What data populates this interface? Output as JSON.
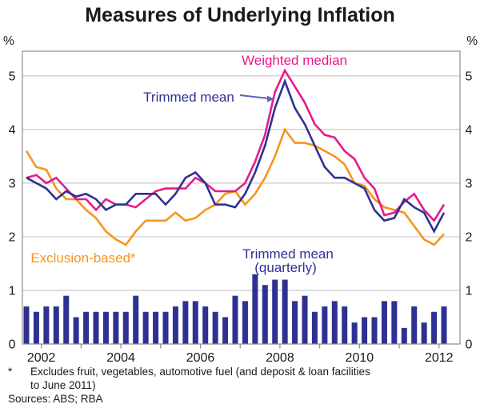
{
  "title": "Measures of Underlying Inflation",
  "footnote": {
    "marker": "*",
    "line1": "Excludes fruit, vegetables, automotive fuel (and deposit & loan facilities",
    "line2": "to June 2011)"
  },
  "sources": "Sources: ABS; RBA",
  "chart_data": {
    "type": "line+bar",
    "title": "Measures of Underlying Inflation",
    "unit_label": "%",
    "frequency": "quarterly",
    "x_start": "2002 Q1",
    "x_end": "2012 Q3",
    "x_tick_labels": [
      "2002",
      "2004",
      "2006",
      "2008",
      "2010",
      "2012"
    ],
    "yticks": [
      0,
      1,
      2,
      3,
      4,
      5
    ],
    "ylim": [
      0,
      5.46
    ],
    "grid": true,
    "series": [
      {
        "name": "Weighted median",
        "type": "line",
        "z": 2,
        "color": "#E61A8C",
        "values": [
          3.1,
          3.15,
          3.0,
          3.1,
          2.9,
          2.7,
          2.7,
          2.5,
          2.7,
          2.6,
          2.6,
          2.55,
          2.7,
          2.85,
          2.9,
          2.9,
          2.9,
          3.1,
          3.0,
          2.85,
          2.85,
          2.85,
          3.0,
          3.4,
          3.9,
          4.7,
          5.1,
          4.8,
          4.5,
          4.1,
          3.9,
          3.85,
          3.6,
          3.45,
          3.1,
          2.9,
          2.4,
          2.45,
          2.65,
          2.8,
          2.5,
          2.3,
          2.6
        ]
      },
      {
        "name": "Trimmed mean",
        "type": "line",
        "z": 3,
        "color": "#2E3192",
        "values": [
          3.1,
          3.0,
          2.9,
          2.7,
          2.85,
          2.75,
          2.8,
          2.7,
          2.5,
          2.6,
          2.6,
          2.8,
          2.8,
          2.8,
          2.6,
          2.8,
          3.1,
          3.2,
          3.0,
          2.6,
          2.6,
          2.55,
          2.8,
          3.2,
          3.7,
          4.4,
          4.9,
          4.4,
          4.1,
          3.7,
          3.3,
          3.1,
          3.1,
          3.0,
          2.9,
          2.5,
          2.3,
          2.35,
          2.7,
          2.55,
          2.45,
          2.1,
          2.45
        ]
      },
      {
        "name": "Exclusion-based*",
        "type": "line",
        "z": 1,
        "color": "#F7941D",
        "values": [
          3.6,
          3.3,
          3.25,
          2.9,
          2.7,
          2.7,
          2.5,
          2.35,
          2.1,
          1.95,
          1.85,
          2.1,
          2.3,
          2.3,
          2.3,
          2.45,
          2.3,
          2.35,
          2.5,
          2.6,
          2.8,
          2.85,
          2.6,
          2.8,
          3.1,
          3.5,
          4.0,
          3.75,
          3.75,
          3.7,
          3.6,
          3.5,
          3.35,
          3.0,
          2.95,
          2.7,
          2.55,
          2.5,
          2.45,
          2.2,
          1.95,
          1.85,
          2.05
        ]
      },
      {
        "name": "Trimmed mean (quarterly)",
        "type": "bar",
        "color": "#2E3192",
        "values": [
          0.7,
          0.6,
          0.7,
          0.7,
          0.9,
          0.5,
          0.6,
          0.6,
          0.6,
          0.6,
          0.6,
          0.9,
          0.6,
          0.6,
          0.6,
          0.7,
          0.8,
          0.8,
          0.7,
          0.6,
          0.5,
          0.9,
          0.8,
          1.3,
          1.1,
          1.2,
          1.2,
          0.8,
          0.9,
          0.6,
          0.7,
          0.8,
          0.7,
          0.4,
          0.5,
          0.5,
          0.8,
          0.8,
          0.3,
          0.7,
          0.4,
          0.6,
          0.7
        ]
      }
    ],
    "annotations": [
      {
        "id": "weighted-median-label",
        "text": "Weighted median",
        "color": "#E61A8C",
        "x": 368,
        "y": 81
      },
      {
        "id": "trimmed-mean-label",
        "text": "Trimmed mean",
        "color": "#2E3192",
        "x": 236,
        "y": 127
      },
      {
        "id": "exclusion-based-label",
        "text": "Exclusion-based*",
        "color": "#F7941D",
        "x": 104,
        "y": 328
      },
      {
        "id": "trimmed-mean-quarterly-label-1",
        "text": "Trimmed mean",
        "color": "#2E3192",
        "x": 360,
        "y": 323
      },
      {
        "id": "trimmed-mean-quarterly-label-2",
        "text": "(quarterly)",
        "color": "#2E3192",
        "x": 357,
        "y": 340
      }
    ],
    "arrow": {
      "color": "#5B64B8",
      "from": [
        300,
        119
      ],
      "to": [
        343,
        124
      ]
    },
    "colors": {
      "grid": "#C9C9C9",
      "frame": "#8C8C8C",
      "axis_text": "#1a1a1a"
    }
  }
}
